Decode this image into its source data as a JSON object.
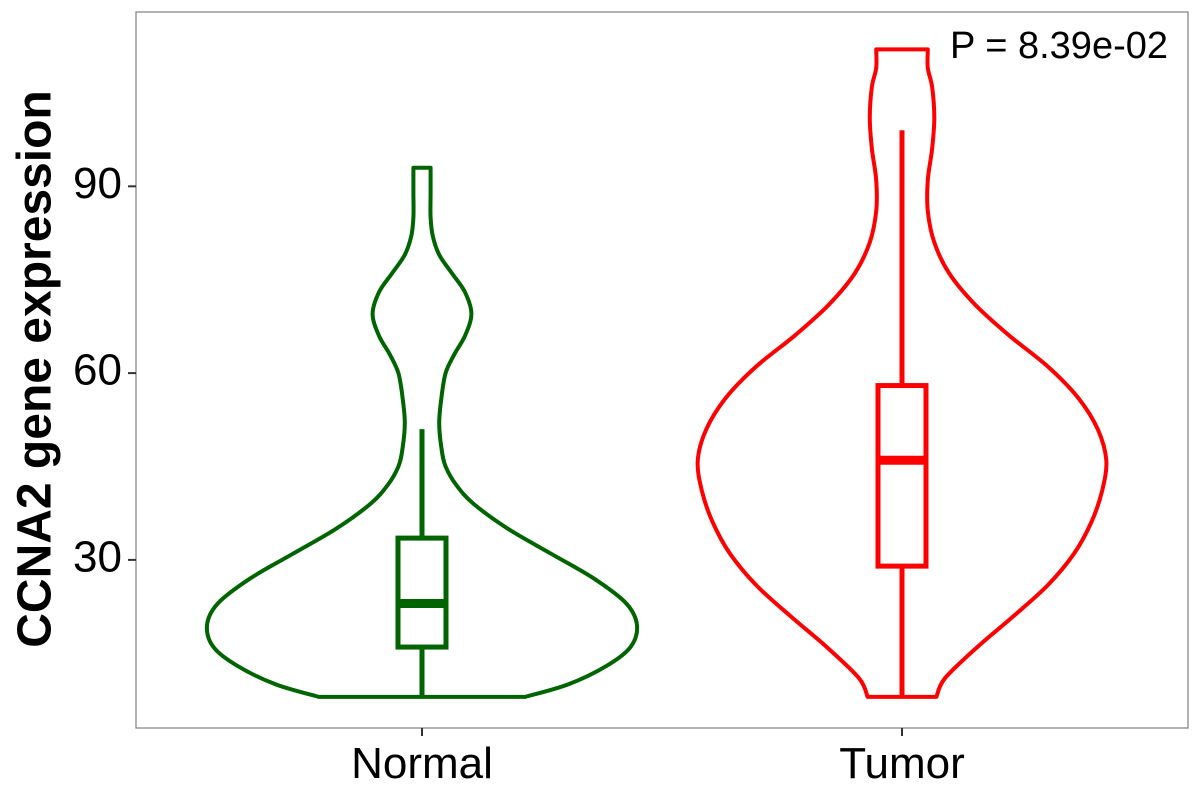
{
  "chart_data": {
    "type": "violin",
    "ylabel": "CCNA2 gene expression",
    "xlabel": "",
    "annotation": "P = 8.39e-02",
    "ylim": [
      3,
      118
    ],
    "yticks": [
      30,
      60,
      90
    ],
    "ytick_labels": [
      "30",
      "60",
      "90"
    ],
    "categories": [
      "Normal",
      "Tumor"
    ],
    "grid": false,
    "legend": "none",
    "series": [
      {
        "color": "#006400",
        "min": 8,
        "max": 93,
        "box": {
          "q1": 16,
          "median": 23,
          "q3": 33.5,
          "whisker_low": 8,
          "whisker_high": 51
        },
        "density": [
          [
            8,
            0.48
          ],
          [
            10,
            0.68
          ],
          [
            13,
            0.86
          ],
          [
            16,
            0.97
          ],
          [
            19.5,
            1.0
          ],
          [
            23,
            0.95
          ],
          [
            27,
            0.8
          ],
          [
            31,
            0.6
          ],
          [
            35,
            0.4
          ],
          [
            39,
            0.24
          ],
          [
            42,
            0.16
          ],
          [
            45,
            0.11
          ],
          [
            48,
            0.09
          ],
          [
            52,
            0.08
          ],
          [
            56,
            0.09
          ],
          [
            60,
            0.11
          ],
          [
            63,
            0.15
          ],
          [
            66,
            0.2
          ],
          [
            69.5,
            0.23
          ],
          [
            73,
            0.2
          ],
          [
            76,
            0.14
          ],
          [
            79,
            0.08
          ],
          [
            82,
            0.05
          ],
          [
            85,
            0.04
          ],
          [
            89,
            0.04
          ],
          [
            93,
            0.04
          ]
        ]
      },
      {
        "color": "#ff0000",
        "min": 8,
        "max": 112,
        "box": {
          "q1": 29,
          "median": 46,
          "q3": 58,
          "whisker_low": 8,
          "whisker_high": 99
        },
        "density": [
          [
            8,
            0.16
          ],
          [
            11,
            0.2
          ],
          [
            16,
            0.35
          ],
          [
            21,
            0.52
          ],
          [
            26,
            0.68
          ],
          [
            31,
            0.8
          ],
          [
            36,
            0.88
          ],
          [
            41,
            0.93
          ],
          [
            46,
            0.95
          ],
          [
            51,
            0.91
          ],
          [
            56,
            0.82
          ],
          [
            61,
            0.68
          ],
          [
            66,
            0.5
          ],
          [
            71,
            0.34
          ],
          [
            76,
            0.22
          ],
          [
            81,
            0.15
          ],
          [
            86,
            0.12
          ],
          [
            91,
            0.12
          ],
          [
            96,
            0.14
          ],
          [
            101,
            0.15
          ],
          [
            106,
            0.14
          ],
          [
            109,
            0.12
          ],
          [
            112,
            0.12
          ]
        ]
      }
    ]
  }
}
